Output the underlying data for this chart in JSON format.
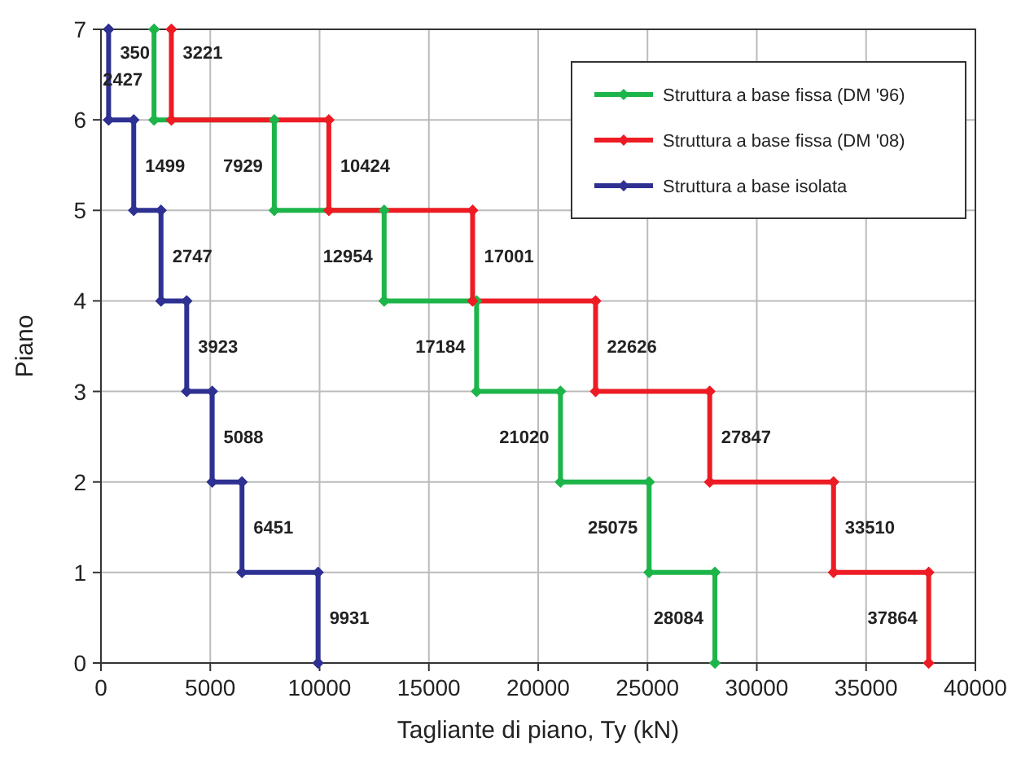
{
  "chart_data": {
    "type": "line",
    "xlabel": "Tagliante di piano, Ty (kN)",
    "ylabel": "Piano",
    "xlim": [
      0,
      40000
    ],
    "xticks": [
      0,
      5000,
      10000,
      15000,
      20000,
      25000,
      30000,
      35000,
      40000
    ],
    "ylim": [
      0,
      7
    ],
    "yticks": [
      0,
      1,
      2,
      3,
      4,
      5,
      6,
      7
    ],
    "grid": true,
    "legend": "top right",
    "marker": "diamond",
    "line_style": "solid",
    "series": [
      {
        "name": "Struttura a base fissa (DM '96)",
        "color": "#1db54a",
        "x": [
          2427,
          2427,
          7929,
          7929,
          12954,
          12954,
          17184,
          17184,
          21020,
          21020,
          25075,
          25075,
          28084,
          28084
        ],
        "values": [
          7,
          6,
          6,
          5,
          5,
          4,
          4,
          3,
          3,
          2,
          2,
          1,
          1,
          0
        ]
      },
      {
        "name": "Struttura a base fissa (DM '08)",
        "color": "#ed1c24",
        "x": [
          3221,
          3221,
          10424,
          10424,
          17001,
          17001,
          22626,
          22626,
          27847,
          27847,
          33510,
          33510,
          37864,
          37864
        ],
        "values": [
          7,
          6,
          6,
          5,
          5,
          4,
          4,
          3,
          3,
          2,
          2,
          1,
          1,
          0
        ]
      },
      {
        "name": "Struttura a base isolata",
        "color": "#2e3192",
        "x": [
          350,
          350,
          1499,
          1499,
          2747,
          2747,
          3923,
          3923,
          5088,
          5088,
          6451,
          6451,
          9931,
          9931
        ],
        "values": [
          7,
          6,
          6,
          5,
          5,
          4,
          4,
          3,
          3,
          2,
          2,
          1,
          1,
          0
        ]
      }
    ],
    "annotations": [
      {
        "text": "350",
        "x": 350,
        "y": 6.75
      },
      {
        "text": "2427",
        "x": 2427,
        "y": 6.45
      },
      {
        "text": "3221",
        "x": 3221,
        "y": 6.75
      },
      {
        "text": "1499",
        "x": 1499,
        "y": 5.5
      },
      {
        "text": "7929",
        "x": 7929,
        "y": 5.5
      },
      {
        "text": "10424",
        "x": 10424,
        "y": 5.5
      },
      {
        "text": "2747",
        "x": 2747,
        "y": 4.5
      },
      {
        "text": "12954",
        "x": 12954,
        "y": 4.5
      },
      {
        "text": "17001",
        "x": 17001,
        "y": 4.5
      },
      {
        "text": "3923",
        "x": 3923,
        "y": 3.5
      },
      {
        "text": "17184",
        "x": 17184,
        "y": 3.5
      },
      {
        "text": "22626",
        "x": 22626,
        "y": 3.5
      },
      {
        "text": "5088",
        "x": 5088,
        "y": 2.5
      },
      {
        "text": "21020",
        "x": 21020,
        "y": 2.5
      },
      {
        "text": "27847",
        "x": 27847,
        "y": 2.5
      },
      {
        "text": "6451",
        "x": 6451,
        "y": 1.5
      },
      {
        "text": "25075",
        "x": 25075,
        "y": 1.5
      },
      {
        "text": "33510",
        "x": 33510,
        "y": 1.5
      },
      {
        "text": "9931",
        "x": 9931,
        "y": 0.5
      },
      {
        "text": "28084",
        "x": 28084,
        "y": 0.5
      },
      {
        "text": "37864",
        "x": 37864,
        "y": 0.5
      }
    ]
  }
}
